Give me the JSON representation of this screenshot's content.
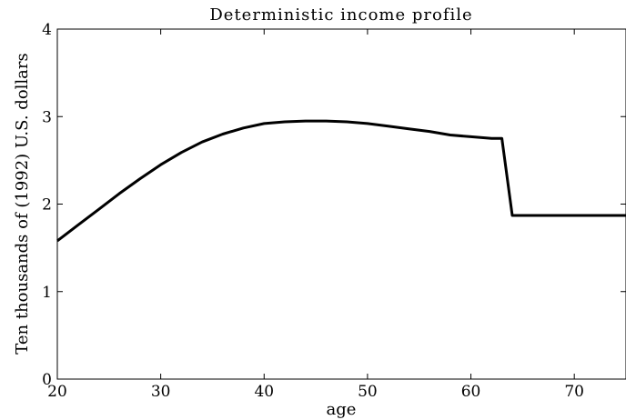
{
  "chart_data": {
    "type": "line",
    "title": "Deterministic income profile",
    "xlabel": "age",
    "ylabel": "Ten thousands of (1992) U.S. dollars",
    "xlim": [
      20,
      75
    ],
    "ylim": [
      0,
      4
    ],
    "xticks": [
      "20",
      "30",
      "40",
      "50",
      "60",
      "70"
    ],
    "yticks": [
      "0",
      "1",
      "2",
      "3",
      "4"
    ],
    "grid": false,
    "legend": "none",
    "line_color": "#000000",
    "series": [
      {
        "x": [
          20,
          22,
          24,
          26,
          28,
          30,
          32,
          34,
          36,
          38,
          40,
          42,
          44,
          46,
          48,
          50,
          52,
          54,
          56,
          58,
          60,
          62,
          63,
          64,
          66,
          68,
          70,
          72,
          74,
          75
        ],
        "y": [
          1.58,
          1.76,
          1.94,
          2.12,
          2.29,
          2.45,
          2.59,
          2.71,
          2.8,
          2.87,
          2.92,
          2.94,
          2.95,
          2.95,
          2.94,
          2.92,
          2.89,
          2.86,
          2.83,
          2.79,
          2.77,
          2.75,
          2.75,
          1.87,
          1.87,
          1.87,
          1.87,
          1.87,
          1.87,
          1.87
        ]
      }
    ]
  }
}
